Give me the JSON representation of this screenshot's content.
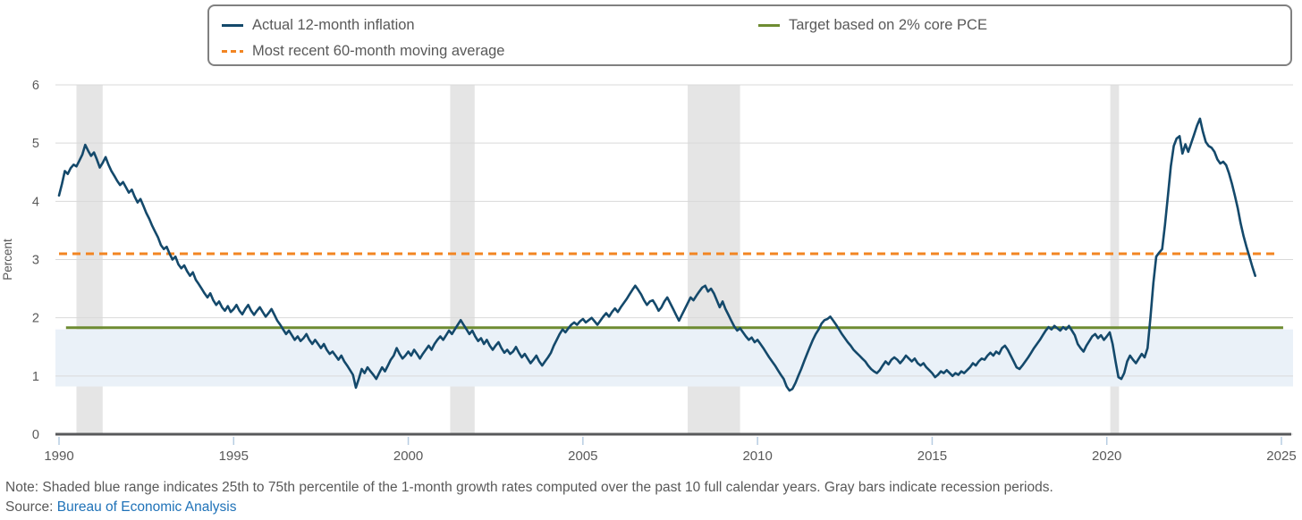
{
  "legend": {
    "items": [
      {
        "label": "Actual 12-month inflation",
        "style": "solid",
        "color": "#14496b"
      },
      {
        "label": "Most recent 60-month moving average",
        "style": "dashed",
        "color": "#f28522"
      },
      {
        "label": "Target based on 2% core PCE",
        "style": "solid",
        "color": "#6e8c32"
      }
    ]
  },
  "note": {
    "text": "Note: Shaded blue range indicates 25th to 75th percentile of the 1-month growth rates computed over the past 10 full calendar years. Gray bars indicate recession periods."
  },
  "source": {
    "prefix": "Source: ",
    "link_text": "Bureau of Economic Analysis"
  },
  "colors": {
    "actual_line": "#14496b",
    "moving_average_line": "#f28522",
    "target_line": "#6e8c32",
    "percentile_band": "#eaf1f8",
    "recession_bar": "#e5e5e5",
    "gridline": "#d9d9d9",
    "axis_line": "#58595b",
    "tick_mark": "#b7cde2",
    "text": "#595959",
    "link": "#1f72b8"
  },
  "chart_data": {
    "type": "line",
    "title": "",
    "xlabel": "",
    "ylabel": "Percent",
    "ylim": [
      0,
      6
    ],
    "y_ticks": [
      0,
      1,
      2,
      3,
      4,
      5,
      6
    ],
    "xlim": [
      1989.9,
      2025.35
    ],
    "x_ticks": [
      1990,
      1995,
      2000,
      2005,
      2010,
      2015,
      2020,
      2025
    ],
    "grid": "horizontal",
    "legend_position": "top",
    "series": [
      {
        "name": "Actual 12-month inflation",
        "type": "line",
        "color": "#14496b",
        "start_year": 1990,
        "start_month": 1,
        "frequency": "monthly",
        "unit": "percent",
        "values": [
          4.1,
          4.3,
          4.52,
          4.47,
          4.57,
          4.63,
          4.6,
          4.7,
          4.8,
          4.97,
          4.87,
          4.78,
          4.84,
          4.72,
          4.58,
          4.66,
          4.76,
          4.63,
          4.52,
          4.44,
          4.35,
          4.28,
          4.33,
          4.24,
          4.15,
          4.2,
          4.08,
          3.98,
          4.04,
          3.92,
          3.8,
          3.7,
          3.58,
          3.48,
          3.38,
          3.25,
          3.18,
          3.22,
          3.1,
          3.0,
          3.05,
          2.92,
          2.85,
          2.9,
          2.8,
          2.72,
          2.78,
          2.65,
          2.58,
          2.5,
          2.42,
          2.35,
          2.42,
          2.3,
          2.22,
          2.28,
          2.18,
          2.12,
          2.2,
          2.1,
          2.15,
          2.22,
          2.12,
          2.06,
          2.15,
          2.22,
          2.12,
          2.05,
          2.12,
          2.18,
          2.1,
          2.02,
          2.08,
          2.15,
          2.05,
          1.95,
          1.88,
          1.8,
          1.72,
          1.78,
          1.7,
          1.62,
          1.68,
          1.6,
          1.65,
          1.72,
          1.62,
          1.55,
          1.62,
          1.55,
          1.48,
          1.55,
          1.45,
          1.38,
          1.42,
          1.35,
          1.28,
          1.35,
          1.25,
          1.18,
          1.1,
          1.02,
          0.8,
          0.95,
          1.12,
          1.05,
          1.15,
          1.08,
          1.02,
          0.95,
          1.05,
          1.15,
          1.08,
          1.18,
          1.28,
          1.35,
          1.48,
          1.38,
          1.3,
          1.35,
          1.42,
          1.35,
          1.45,
          1.38,
          1.3,
          1.38,
          1.45,
          1.52,
          1.45,
          1.55,
          1.62,
          1.68,
          1.62,
          1.7,
          1.78,
          1.72,
          1.8,
          1.88,
          1.96,
          1.88,
          1.8,
          1.72,
          1.78,
          1.68,
          1.6,
          1.65,
          1.55,
          1.62,
          1.52,
          1.45,
          1.52,
          1.58,
          1.48,
          1.4,
          1.45,
          1.38,
          1.42,
          1.5,
          1.4,
          1.32,
          1.38,
          1.3,
          1.22,
          1.28,
          1.35,
          1.25,
          1.18,
          1.25,
          1.32,
          1.4,
          1.52,
          1.62,
          1.72,
          1.8,
          1.75,
          1.82,
          1.88,
          1.92,
          1.88,
          1.94,
          1.98,
          1.92,
          1.96,
          2.0,
          1.94,
          1.88,
          1.95,
          2.02,
          2.08,
          2.02,
          2.1,
          2.16,
          2.1,
          2.18,
          2.25,
          2.32,
          2.4,
          2.48,
          2.55,
          2.48,
          2.4,
          2.3,
          2.22,
          2.28,
          2.3,
          2.22,
          2.12,
          2.18,
          2.28,
          2.35,
          2.25,
          2.15,
          2.05,
          1.95,
          2.05,
          2.15,
          2.25,
          2.35,
          2.3,
          2.38,
          2.45,
          2.52,
          2.55,
          2.45,
          2.5,
          2.42,
          2.3,
          2.18,
          2.28,
          2.15,
          2.05,
          1.95,
          1.85,
          1.78,
          1.82,
          1.75,
          1.68,
          1.62,
          1.66,
          1.58,
          1.62,
          1.55,
          1.48,
          1.4,
          1.32,
          1.25,
          1.18,
          1.1,
          1.02,
          0.95,
          0.82,
          0.75,
          0.78,
          0.88,
          1.0,
          1.12,
          1.25,
          1.38,
          1.5,
          1.62,
          1.72,
          1.8,
          1.9,
          1.96,
          1.98,
          2.02,
          1.95,
          1.88,
          1.8,
          1.72,
          1.65,
          1.58,
          1.52,
          1.45,
          1.4,
          1.35,
          1.3,
          1.25,
          1.18,
          1.12,
          1.08,
          1.05,
          1.1,
          1.18,
          1.25,
          1.2,
          1.28,
          1.32,
          1.28,
          1.22,
          1.28,
          1.35,
          1.3,
          1.25,
          1.3,
          1.22,
          1.18,
          1.22,
          1.15,
          1.1,
          1.05,
          0.98,
          1.02,
          1.08,
          1.05,
          1.1,
          1.05,
          1.0,
          1.05,
          1.02,
          1.08,
          1.05,
          1.1,
          1.15,
          1.22,
          1.18,
          1.25,
          1.3,
          1.28,
          1.35,
          1.4,
          1.35,
          1.42,
          1.38,
          1.48,
          1.52,
          1.45,
          1.35,
          1.25,
          1.15,
          1.12,
          1.18,
          1.25,
          1.32,
          1.4,
          1.48,
          1.55,
          1.62,
          1.7,
          1.78,
          1.84,
          1.8,
          1.86,
          1.82,
          1.78,
          1.84,
          1.8,
          1.86,
          1.78,
          1.7,
          1.55,
          1.48,
          1.42,
          1.52,
          1.6,
          1.68,
          1.72,
          1.65,
          1.7,
          1.62,
          1.68,
          1.75,
          1.55,
          1.25,
          0.98,
          0.95,
          1.05,
          1.25,
          1.35,
          1.28,
          1.22,
          1.3,
          1.38,
          1.32,
          1.48,
          2.0,
          2.6,
          3.05,
          3.12,
          3.18,
          3.6,
          4.1,
          4.6,
          4.95,
          5.08,
          5.12,
          4.82,
          4.98,
          4.85,
          5.0,
          5.15,
          5.3,
          5.42,
          5.2,
          5.02,
          4.95,
          4.92,
          4.85,
          4.72,
          4.65,
          4.68,
          4.62,
          4.48,
          4.3,
          4.1,
          3.88,
          3.62,
          3.4,
          3.22,
          3.05,
          2.88,
          2.72
        ]
      },
      {
        "name": "Most recent 60-month moving average",
        "type": "hline",
        "color": "#f28522",
        "dashed": true,
        "value": 3.1,
        "x_range": [
          1990.0,
          2024.9
        ]
      },
      {
        "name": "Target based on 2% core PCE",
        "type": "hline",
        "color": "#6e8c32",
        "dashed": false,
        "value": 1.83,
        "x_range": [
          1990.2,
          2025.05
        ]
      }
    ],
    "percentile_band": {
      "description": "25th to 75th percentile of the 1-month growth rates computed over the past 10 full calendar years",
      "y_range": [
        0.82,
        1.8
      ],
      "color": "#eaf1f8"
    },
    "recession_bars": {
      "color": "#e5e5e5",
      "periods": [
        [
          1990.5,
          1991.25
        ],
        [
          2001.2,
          2001.9
        ],
        [
          2008.0,
          2009.5
        ],
        [
          2020.1,
          2020.35
        ]
      ]
    }
  }
}
